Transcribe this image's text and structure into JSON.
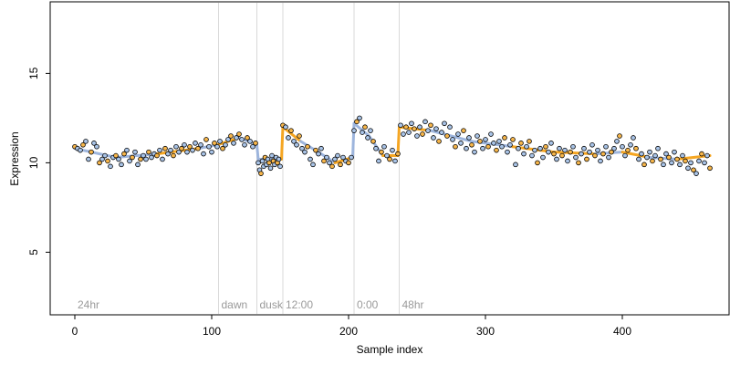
{
  "chart_data": {
    "type": "scatter",
    "title": "",
    "xlabel": "Sample index",
    "ylabel": "Expression",
    "xlim": [
      -18,
      478
    ],
    "ylim": [
      1.5,
      19
    ],
    "x_ticks": [
      0,
      100,
      200,
      300,
      400
    ],
    "y_ticks": [
      5,
      10,
      15
    ],
    "x_tick_labels": [
      "0",
      "100",
      "200",
      "300",
      "400"
    ],
    "y_tick_labels": [
      "5",
      "10",
      "15"
    ],
    "grid": false,
    "legend": "none",
    "colors": {
      "axis": "#000000",
      "event_line": "#d9d9d9",
      "event_label": "#9a9a9a",
      "fit_blue": "#9db5dd",
      "fit_orange": "#f5a623",
      "point_blue": "#a9c4e8",
      "point_orange": "#f7b64a",
      "point_edge": "#000000"
    },
    "events": [
      {
        "x": 0,
        "label": "24hr",
        "line": false
      },
      {
        "x": 105,
        "label": "dawn",
        "line": true
      },
      {
        "x": 133,
        "label": "dusk",
        "line": true
      },
      {
        "x": 152,
        "label": "12:00",
        "line": true
      },
      {
        "x": 204,
        "label": "0:00",
        "line": true
      },
      {
        "x": 237,
        "label": "48hr",
        "line": true
      }
    ],
    "trend": [
      {
        "x": 0,
        "y": 10.8
      },
      {
        "x": 30,
        "y": 10.3
      },
      {
        "x": 60,
        "y": 10.5
      },
      {
        "x": 90,
        "y": 10.8
      },
      {
        "x": 104,
        "y": 11.0
      },
      {
        "x": 120,
        "y": 11.4
      },
      {
        "x": 133,
        "y": 11.0
      },
      {
        "x": 134,
        "y": 10.2
      },
      {
        "x": 151,
        "y": 10.2
      },
      {
        "x": 152,
        "y": 12.0
      },
      {
        "x": 165,
        "y": 11.2
      },
      {
        "x": 180,
        "y": 10.5
      },
      {
        "x": 190,
        "y": 10.0
      },
      {
        "x": 203,
        "y": 10.3
      },
      {
        "x": 204,
        "y": 12.2
      },
      {
        "x": 215,
        "y": 11.5
      },
      {
        "x": 225,
        "y": 10.4
      },
      {
        "x": 236,
        "y": 10.4
      },
      {
        "x": 237,
        "y": 12.0
      },
      {
        "x": 260,
        "y": 11.8
      },
      {
        "x": 290,
        "y": 11.2
      },
      {
        "x": 320,
        "y": 10.9
      },
      {
        "x": 350,
        "y": 10.6
      },
      {
        "x": 380,
        "y": 10.5
      },
      {
        "x": 400,
        "y": 10.6
      },
      {
        "x": 420,
        "y": 10.3
      },
      {
        "x": 440,
        "y": 10.2
      },
      {
        "x": 464,
        "y": 10.4
      }
    ],
    "series": [
      {
        "values": [
          {
            "x": 0,
            "y": 10.9
          },
          {
            "x": 2,
            "y": 10.8
          },
          {
            "x": 4,
            "y": 10.7
          },
          {
            "x": 6,
            "y": 11.0
          },
          {
            "x": 8,
            "y": 11.2
          },
          {
            "x": 10,
            "y": 10.2
          },
          {
            "x": 12,
            "y": 10.6
          },
          {
            "x": 14,
            "y": 11.1
          },
          {
            "x": 16,
            "y": 10.9
          },
          {
            "x": 18,
            "y": 10.0
          },
          {
            "x": 20,
            "y": 10.2
          },
          {
            "x": 22,
            "y": 10.4
          },
          {
            "x": 24,
            "y": 10.1
          },
          {
            "x": 26,
            "y": 9.8
          },
          {
            "x": 28,
            "y": 10.3
          },
          {
            "x": 30,
            "y": 10.4
          },
          {
            "x": 32,
            "y": 10.2
          },
          {
            "x": 34,
            "y": 9.9
          },
          {
            "x": 36,
            "y": 10.5
          },
          {
            "x": 38,
            "y": 10.7
          },
          {
            "x": 40,
            "y": 10.1
          },
          {
            "x": 42,
            "y": 10.3
          },
          {
            "x": 44,
            "y": 10.6
          },
          {
            "x": 46,
            "y": 9.9
          },
          {
            "x": 48,
            "y": 10.2
          },
          {
            "x": 50,
            "y": 10.4
          },
          {
            "x": 52,
            "y": 10.2
          },
          {
            "x": 54,
            "y": 10.6
          },
          {
            "x": 56,
            "y": 10.3
          },
          {
            "x": 58,
            "y": 10.5
          },
          {
            "x": 60,
            "y": 10.4
          },
          {
            "x": 62,
            "y": 10.7
          },
          {
            "x": 64,
            "y": 10.2
          },
          {
            "x": 66,
            "y": 10.8
          },
          {
            "x": 68,
            "y": 10.5
          },
          {
            "x": 70,
            "y": 10.7
          },
          {
            "x": 72,
            "y": 10.4
          },
          {
            "x": 74,
            "y": 10.9
          },
          {
            "x": 76,
            "y": 10.6
          },
          {
            "x": 78,
            "y": 10.8
          },
          {
            "x": 80,
            "y": 11.0
          },
          {
            "x": 82,
            "y": 10.6
          },
          {
            "x": 84,
            "y": 10.9
          },
          {
            "x": 86,
            "y": 10.7
          },
          {
            "x": 88,
            "y": 11.1
          },
          {
            "x": 90,
            "y": 10.8
          },
          {
            "x": 92,
            "y": 11.0
          },
          {
            "x": 94,
            "y": 10.5
          },
          {
            "x": 96,
            "y": 11.3
          },
          {
            "x": 98,
            "y": 10.9
          },
          {
            "x": 100,
            "y": 10.6
          },
          {
            "x": 102,
            "y": 11.1
          },
          {
            "x": 104,
            "y": 10.9
          },
          {
            "x": 106,
            "y": 11.2
          },
          {
            "x": 108,
            "y": 10.8
          },
          {
            "x": 110,
            "y": 11.0
          },
          {
            "x": 112,
            "y": 11.3
          },
          {
            "x": 114,
            "y": 11.5
          },
          {
            "x": 116,
            "y": 11.1
          },
          {
            "x": 118,
            "y": 11.4
          },
          {
            "x": 120,
            "y": 11.6
          },
          {
            "x": 122,
            "y": 11.3
          },
          {
            "x": 124,
            "y": 11.0
          },
          {
            "x": 126,
            "y": 11.4
          },
          {
            "x": 128,
            "y": 11.2
          },
          {
            "x": 130,
            "y": 10.9
          },
          {
            "x": 132,
            "y": 11.1
          },
          {
            "x": 134,
            "y": 10.0
          },
          {
            "x": 135,
            "y": 9.6
          },
          {
            "x": 136,
            "y": 9.4
          },
          {
            "x": 137,
            "y": 10.1
          },
          {
            "x": 138,
            "y": 9.8
          },
          {
            "x": 139,
            "y": 10.3
          },
          {
            "x": 140,
            "y": 9.9
          },
          {
            "x": 141,
            "y": 10.2
          },
          {
            "x": 142,
            "y": 10.0
          },
          {
            "x": 143,
            "y": 9.7
          },
          {
            "x": 144,
            "y": 10.4
          },
          {
            "x": 145,
            "y": 10.1
          },
          {
            "x": 146,
            "y": 9.9
          },
          {
            "x": 147,
            "y": 10.3
          },
          {
            "x": 148,
            "y": 10.0
          },
          {
            "x": 149,
            "y": 10.2
          },
          {
            "x": 150,
            "y": 9.8
          },
          {
            "x": 152,
            "y": 12.1
          },
          {
            "x": 154,
            "y": 12.0
          },
          {
            "x": 156,
            "y": 11.4
          },
          {
            "x": 158,
            "y": 11.8
          },
          {
            "x": 160,
            "y": 11.2
          },
          {
            "x": 162,
            "y": 11.0
          },
          {
            "x": 164,
            "y": 11.5
          },
          {
            "x": 166,
            "y": 10.8
          },
          {
            "x": 168,
            "y": 10.6
          },
          {
            "x": 170,
            "y": 10.9
          },
          {
            "x": 172,
            "y": 10.2
          },
          {
            "x": 174,
            "y": 9.9
          },
          {
            "x": 176,
            "y": 10.7
          },
          {
            "x": 178,
            "y": 10.5
          },
          {
            "x": 180,
            "y": 10.8
          },
          {
            "x": 182,
            "y": 10.1
          },
          {
            "x": 184,
            "y": 10.3
          },
          {
            "x": 186,
            "y": 10.0
          },
          {
            "x": 188,
            "y": 9.8
          },
          {
            "x": 190,
            "y": 10.2
          },
          {
            "x": 192,
            "y": 10.4
          },
          {
            "x": 194,
            "y": 9.9
          },
          {
            "x": 196,
            "y": 10.3
          },
          {
            "x": 198,
            "y": 10.1
          },
          {
            "x": 200,
            "y": 10.0
          },
          {
            "x": 202,
            "y": 10.3
          },
          {
            "x": 204,
            "y": 11.8
          },
          {
            "x": 206,
            "y": 12.3
          },
          {
            "x": 208,
            "y": 12.5
          },
          {
            "x": 210,
            "y": 11.7
          },
          {
            "x": 212,
            "y": 12.0
          },
          {
            "x": 214,
            "y": 11.4
          },
          {
            "x": 216,
            "y": 11.8
          },
          {
            "x": 218,
            "y": 11.2
          },
          {
            "x": 220,
            "y": 10.8
          },
          {
            "x": 222,
            "y": 10.1
          },
          {
            "x": 224,
            "y": 10.6
          },
          {
            "x": 226,
            "y": 10.9
          },
          {
            "x": 228,
            "y": 10.4
          },
          {
            "x": 230,
            "y": 10.2
          },
          {
            "x": 232,
            "y": 10.7
          },
          {
            "x": 234,
            "y": 10.1
          },
          {
            "x": 236,
            "y": 10.5
          },
          {
            "x": 238,
            "y": 12.1
          },
          {
            "x": 240,
            "y": 11.6
          },
          {
            "x": 242,
            "y": 12.0
          },
          {
            "x": 244,
            "y": 11.7
          },
          {
            "x": 246,
            "y": 12.2
          },
          {
            "x": 248,
            "y": 11.9
          },
          {
            "x": 250,
            "y": 11.5
          },
          {
            "x": 252,
            "y": 12.0
          },
          {
            "x": 254,
            "y": 11.6
          },
          {
            "x": 256,
            "y": 12.3
          },
          {
            "x": 258,
            "y": 11.8
          },
          {
            "x": 260,
            "y": 12.1
          },
          {
            "x": 262,
            "y": 11.4
          },
          {
            "x": 264,
            "y": 11.9
          },
          {
            "x": 266,
            "y": 11.2
          },
          {
            "x": 268,
            "y": 11.7
          },
          {
            "x": 270,
            "y": 12.2
          },
          {
            "x": 272,
            "y": 11.5
          },
          {
            "x": 274,
            "y": 12.0
          },
          {
            "x": 276,
            "y": 11.3
          },
          {
            "x": 278,
            "y": 10.9
          },
          {
            "x": 280,
            "y": 11.6
          },
          {
            "x": 282,
            "y": 11.1
          },
          {
            "x": 284,
            "y": 11.8
          },
          {
            "x": 286,
            "y": 10.8
          },
          {
            "x": 288,
            "y": 11.4
          },
          {
            "x": 290,
            "y": 11.0
          },
          {
            "x": 292,
            "y": 10.6
          },
          {
            "x": 294,
            "y": 11.5
          },
          {
            "x": 296,
            "y": 11.2
          },
          {
            "x": 298,
            "y": 10.8
          },
          {
            "x": 300,
            "y": 11.3
          },
          {
            "x": 302,
            "y": 10.9
          },
          {
            "x": 304,
            "y": 11.6
          },
          {
            "x": 306,
            "y": 11.1
          },
          {
            "x": 308,
            "y": 10.7
          },
          {
            "x": 310,
            "y": 11.2
          },
          {
            "x": 312,
            "y": 10.9
          },
          {
            "x": 314,
            "y": 11.4
          },
          {
            "x": 316,
            "y": 10.6
          },
          {
            "x": 318,
            "y": 11.0
          },
          {
            "x": 320,
            "y": 11.3
          },
          {
            "x": 322,
            "y": 9.9
          },
          {
            "x": 324,
            "y": 10.8
          },
          {
            "x": 326,
            "y": 11.1
          },
          {
            "x": 328,
            "y": 10.5
          },
          {
            "x": 330,
            "y": 10.9
          },
          {
            "x": 332,
            "y": 11.2
          },
          {
            "x": 334,
            "y": 10.4
          },
          {
            "x": 336,
            "y": 10.7
          },
          {
            "x": 338,
            "y": 10.0
          },
          {
            "x": 340,
            "y": 10.8
          },
          {
            "x": 342,
            "y": 10.3
          },
          {
            "x": 344,
            "y": 10.9
          },
          {
            "x": 346,
            "y": 10.6
          },
          {
            "x": 348,
            "y": 11.1
          },
          {
            "x": 350,
            "y": 10.5
          },
          {
            "x": 352,
            "y": 10.2
          },
          {
            "x": 354,
            "y": 10.8
          },
          {
            "x": 356,
            "y": 10.4
          },
          {
            "x": 358,
            "y": 10.7
          },
          {
            "x": 360,
            "y": 10.1
          },
          {
            "x": 362,
            "y": 10.6
          },
          {
            "x": 364,
            "y": 10.9
          },
          {
            "x": 366,
            "y": 10.3
          },
          {
            "x": 368,
            "y": 10.0
          },
          {
            "x": 370,
            "y": 10.5
          },
          {
            "x": 372,
            "y": 10.8
          },
          {
            "x": 374,
            "y": 10.2
          },
          {
            "x": 376,
            "y": 10.6
          },
          {
            "x": 378,
            "y": 11.0
          },
          {
            "x": 380,
            "y": 10.4
          },
          {
            "x": 382,
            "y": 10.7
          },
          {
            "x": 384,
            "y": 10.1
          },
          {
            "x": 386,
            "y": 10.5
          },
          {
            "x": 388,
            "y": 10.9
          },
          {
            "x": 390,
            "y": 10.3
          },
          {
            "x": 392,
            "y": 10.6
          },
          {
            "x": 394,
            "y": 10.8
          },
          {
            "x": 396,
            "y": 11.2
          },
          {
            "x": 398,
            "y": 11.5
          },
          {
            "x": 400,
            "y": 10.9
          },
          {
            "x": 402,
            "y": 10.4
          },
          {
            "x": 404,
            "y": 10.7
          },
          {
            "x": 406,
            "y": 11.0
          },
          {
            "x": 408,
            "y": 11.4
          },
          {
            "x": 410,
            "y": 10.8
          },
          {
            "x": 412,
            "y": 10.2
          },
          {
            "x": 414,
            "y": 10.5
          },
          {
            "x": 416,
            "y": 9.9
          },
          {
            "x": 418,
            "y": 10.3
          },
          {
            "x": 420,
            "y": 10.6
          },
          {
            "x": 422,
            "y": 10.1
          },
          {
            "x": 424,
            "y": 10.4
          },
          {
            "x": 426,
            "y": 10.8
          },
          {
            "x": 428,
            "y": 10.2
          },
          {
            "x": 430,
            "y": 9.9
          },
          {
            "x": 432,
            "y": 10.5
          },
          {
            "x": 434,
            "y": 10.3
          },
          {
            "x": 436,
            "y": 10.0
          },
          {
            "x": 438,
            "y": 10.6
          },
          {
            "x": 440,
            "y": 10.2
          },
          {
            "x": 442,
            "y": 9.9
          },
          {
            "x": 444,
            "y": 10.4
          },
          {
            "x": 446,
            "y": 10.1
          },
          {
            "x": 448,
            "y": 9.7
          },
          {
            "x": 450,
            "y": 10.0
          },
          {
            "x": 452,
            "y": 9.6
          },
          {
            "x": 454,
            "y": 9.4
          },
          {
            "x": 456,
            "y": 10.1
          },
          {
            "x": 458,
            "y": 10.5
          },
          {
            "x": 460,
            "y": 10.0
          },
          {
            "x": 462,
            "y": 10.4
          },
          {
            "x": 464,
            "y": 9.7
          }
        ]
      }
    ]
  }
}
